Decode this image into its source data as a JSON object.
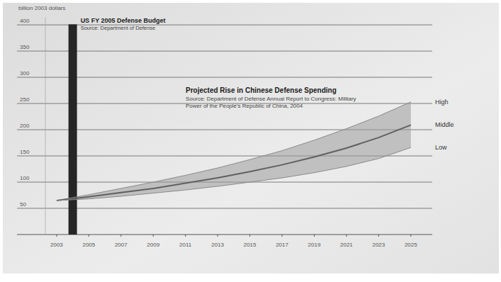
{
  "chart_data": {
    "type": "line",
    "ylabel": "billion 2003 dollars",
    "xlim": [
      2002.3,
      2025.8
    ],
    "xticks": [
      2003,
      2005,
      2007,
      2009,
      2011,
      2013,
      2015,
      2017,
      2019,
      2021,
      2023,
      2025
    ],
    "ylim": [
      0,
      415
    ],
    "yticks": [
      50,
      100,
      150,
      200,
      250,
      300,
      350,
      400
    ],
    "grid": true,
    "annotations": {
      "budget_source": "Source: Department of Defense",
      "projection_title": "Projected Rise in Chinese Defense Spending",
      "projection_source": "Source: Department of Defense Annual Report to Congress: Military Power of the People's Republic of China, 2004"
    },
    "series": [
      {
        "name": "US FY 2005 Defense Budget",
        "type": "bar",
        "color": "#262626",
        "x": [
          2004
        ],
        "values": [
          401
        ]
      },
      {
        "name": "High",
        "type": "line",
        "color": "#8a8a8a",
        "x": [
          2003,
          2005,
          2007,
          2009,
          2011,
          2013,
          2015,
          2017,
          2019,
          2021,
          2023,
          2025
        ],
        "values": [
          65,
          76,
          88,
          100,
          113,
          127,
          143,
          160,
          180,
          202,
          226,
          253
        ]
      },
      {
        "name": "Middle",
        "type": "line",
        "color": "#606060",
        "x": [
          2003,
          2005,
          2007,
          2009,
          2011,
          2013,
          2015,
          2017,
          2019,
          2021,
          2023,
          2025
        ],
        "values": [
          65,
          72,
          80,
          88,
          98,
          108,
          120,
          133,
          148,
          165,
          185,
          209
        ]
      },
      {
        "name": "Low",
        "type": "line",
        "color": "#8a8a8a",
        "x": [
          2003,
          2005,
          2007,
          2009,
          2011,
          2013,
          2015,
          2017,
          2019,
          2021,
          2023,
          2025
        ],
        "values": [
          65,
          68,
          73,
          79,
          85,
          92,
          100,
          108,
          118,
          130,
          145,
          166
        ]
      }
    ]
  }
}
